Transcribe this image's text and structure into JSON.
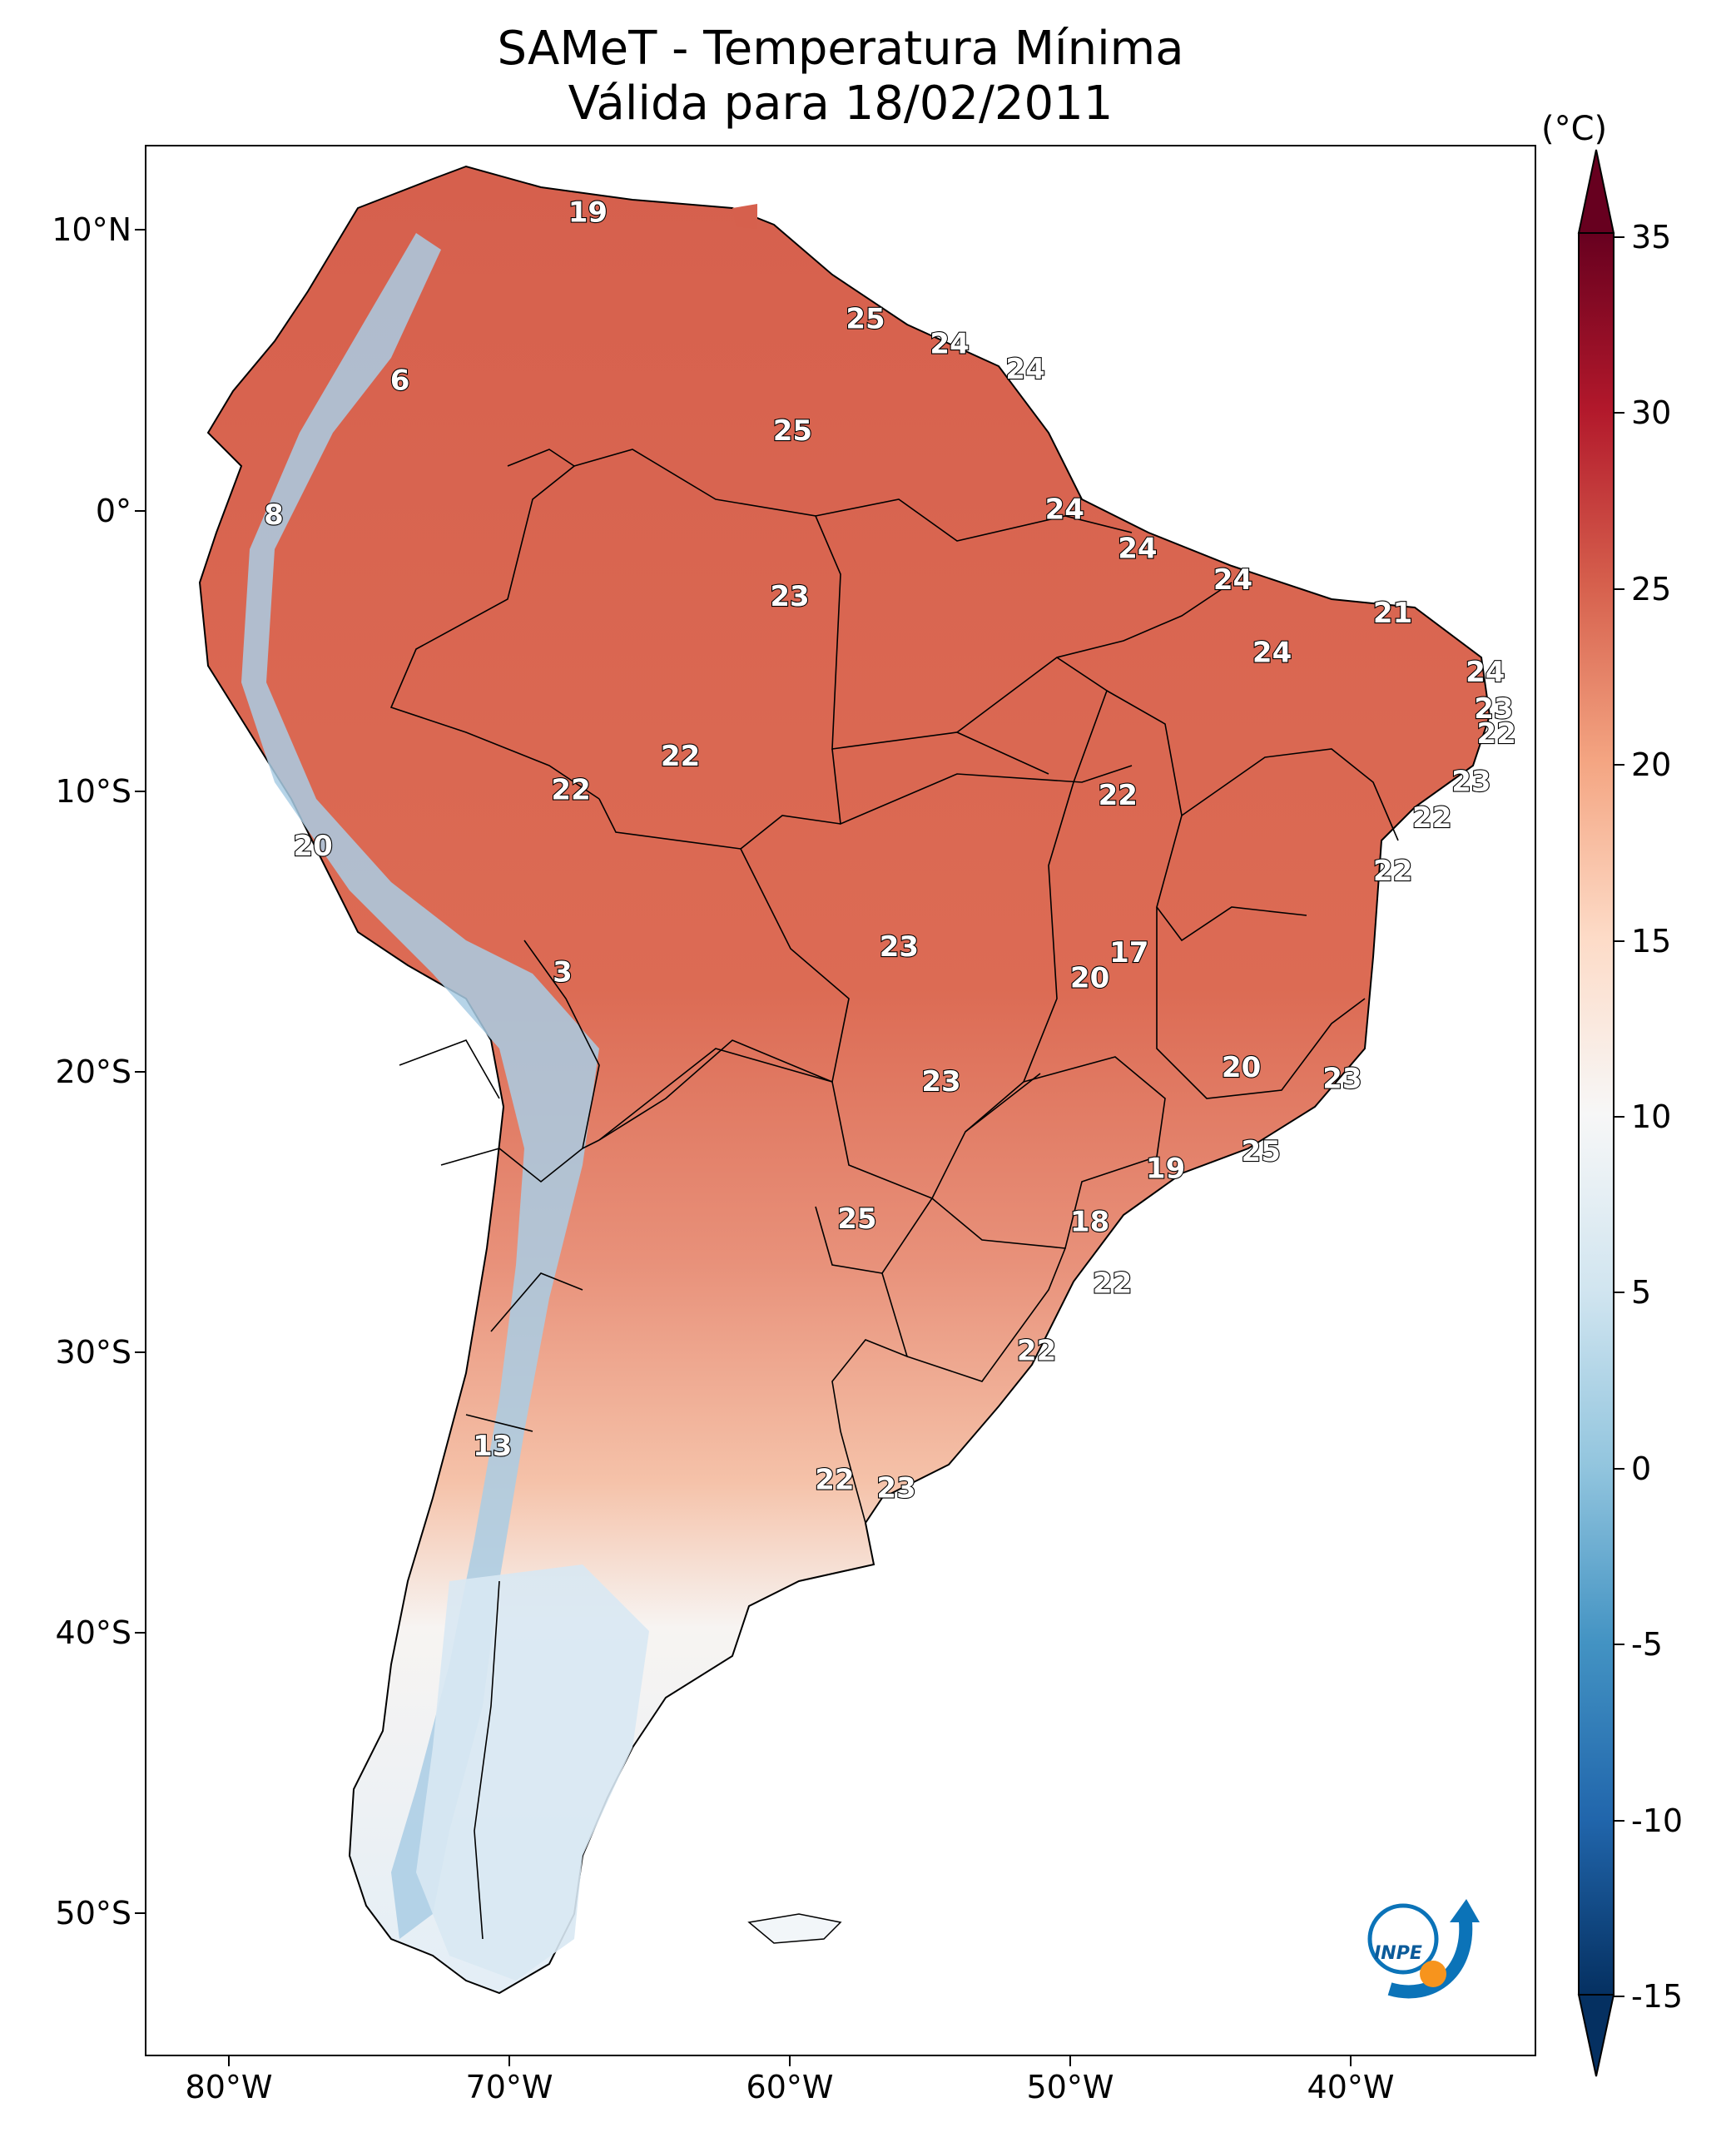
{
  "title_line1": "SAMeT - Temperatura Mínima",
  "title_line2": "Válida para 18/02/2011",
  "colorbar": {
    "unit": "(°C)",
    "ticks": [
      "35",
      "30",
      "25",
      "20",
      "15",
      "10",
      "5",
      "0",
      "-5",
      "-10",
      "-15"
    ],
    "range": [
      -15,
      35
    ],
    "colors": [
      "#053061",
      "#2166ac",
      "#4393c3",
      "#92c5de",
      "#d1e5f0",
      "#f7f7f7",
      "#fddbc7",
      "#f4a582",
      "#d6604d",
      "#b2182b",
      "#67001f"
    ]
  },
  "lat_labels": [
    "10°N",
    "0°",
    "10°S",
    "20°S",
    "30°S",
    "40°S",
    "50°S"
  ],
  "lon_labels": [
    "80°W",
    "70°W",
    "60°W",
    "50°W",
    "40°W"
  ],
  "logo_text": "INPE",
  "stations": [
    {
      "value": "19",
      "lon": -67.2,
      "lat": 10.6
    },
    {
      "value": "25",
      "lon": -57.3,
      "lat": 6.8
    },
    {
      "value": "24",
      "lon": -54.3,
      "lat": 5.9
    },
    {
      "value": "24",
      "lon": -51.6,
      "lat": 5.0
    },
    {
      "value": "6",
      "lon": -73.9,
      "lat": 4.6
    },
    {
      "value": "25",
      "lon": -59.9,
      "lat": 2.8
    },
    {
      "value": "8",
      "lon": -78.4,
      "lat": -0.2
    },
    {
      "value": "24",
      "lon": -50.2,
      "lat": 0.0
    },
    {
      "value": "24",
      "lon": -47.6,
      "lat": -1.4
    },
    {
      "value": "24",
      "lon": -44.2,
      "lat": -2.5
    },
    {
      "value": "21",
      "lon": -38.5,
      "lat": -3.7
    },
    {
      "value": "23",
      "lon": -60.0,
      "lat": -3.1
    },
    {
      "value": "24",
      "lon": -42.8,
      "lat": -5.1
    },
    {
      "value": "24",
      "lon": -35.2,
      "lat": -5.8
    },
    {
      "value": "23",
      "lon": -34.9,
      "lat": -7.1
    },
    {
      "value": "22",
      "lon": -34.8,
      "lat": -8.0
    },
    {
      "value": "22",
      "lon": -63.9,
      "lat": -8.8
    },
    {
      "value": "22",
      "lon": -67.8,
      "lat": -10.0
    },
    {
      "value": "22",
      "lon": -48.3,
      "lat": -10.2
    },
    {
      "value": "23",
      "lon": -35.7,
      "lat": -9.7
    },
    {
      "value": "22",
      "lon": -37.1,
      "lat": -11.0
    },
    {
      "value": "20",
      "lon": -77.0,
      "lat": -12.0
    },
    {
      "value": "22",
      "lon": -38.5,
      "lat": -12.9
    },
    {
      "value": "23",
      "lon": -56.1,
      "lat": -15.6
    },
    {
      "value": "17",
      "lon": -47.9,
      "lat": -15.8
    },
    {
      "value": "3",
      "lon": -68.1,
      "lat": -16.5
    },
    {
      "value": "20",
      "lon": -49.3,
      "lat": -16.7
    },
    {
      "value": "23",
      "lon": -54.6,
      "lat": -20.4
    },
    {
      "value": "20",
      "lon": -43.9,
      "lat": -19.9
    },
    {
      "value": "23",
      "lon": -40.3,
      "lat": -20.3
    },
    {
      "value": "25",
      "lon": -43.2,
      "lat": -22.9
    },
    {
      "value": "19",
      "lon": -46.6,
      "lat": -23.5
    },
    {
      "value": "25",
      "lon": -57.6,
      "lat": -25.3
    },
    {
      "value": "18",
      "lon": -49.3,
      "lat": -25.4
    },
    {
      "value": "22",
      "lon": -48.5,
      "lat": -27.6
    },
    {
      "value": "22",
      "lon": -51.2,
      "lat": -30.0
    },
    {
      "value": "13",
      "lon": -70.6,
      "lat": -33.4
    },
    {
      "value": "22",
      "lon": -58.4,
      "lat": -34.6
    },
    {
      "value": "23",
      "lon": -56.2,
      "lat": -34.9
    }
  ]
}
